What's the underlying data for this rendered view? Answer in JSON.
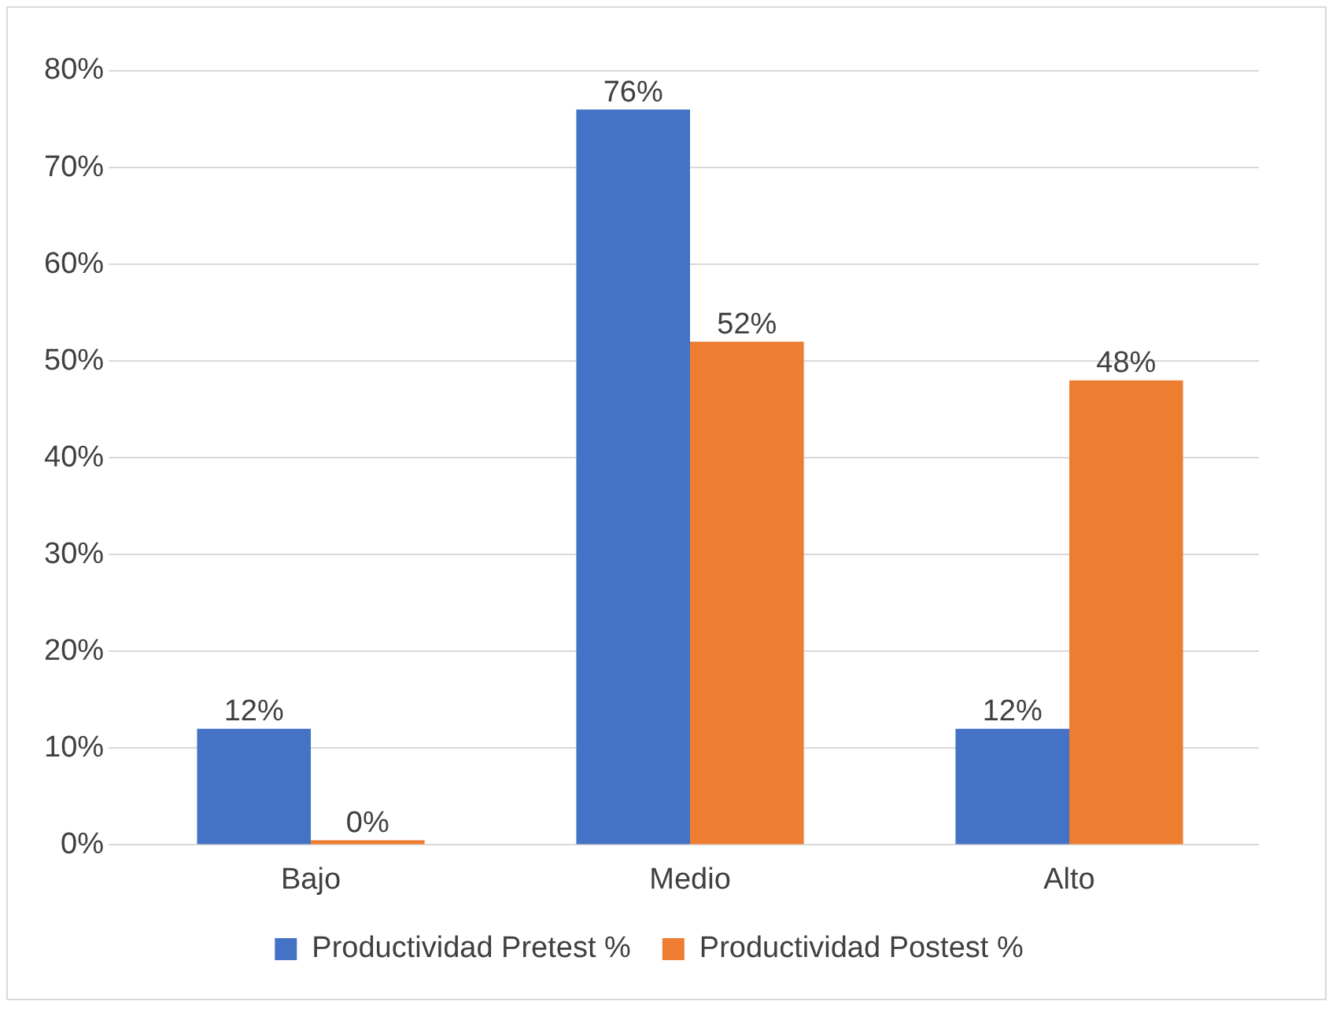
{
  "chart_data": {
    "type": "bar",
    "categories": [
      "Bajo",
      "Medio",
      "Alto"
    ],
    "series": [
      {
        "name": "Productividad Pretest %",
        "color": "#4472c4",
        "values": [
          12,
          76,
          12
        ],
        "value_labels": [
          "12%",
          "76%",
          "12%"
        ]
      },
      {
        "name": "Productividad Postest %",
        "color": "#ed7d31",
        "values": [
          0,
          52,
          48
        ],
        "value_labels": [
          "0%",
          "52%",
          "48%"
        ]
      }
    ],
    "ylim": [
      0,
      80
    ],
    "yticks": [
      {
        "value": 0,
        "label": "0%"
      },
      {
        "value": 10,
        "label": "10%"
      },
      {
        "value": 20,
        "label": "20%"
      },
      {
        "value": 30,
        "label": "30%"
      },
      {
        "value": 40,
        "label": "40%"
      },
      {
        "value": 50,
        "label": "50%"
      },
      {
        "value": 60,
        "label": "60%"
      },
      {
        "value": 70,
        "label": "70%"
      },
      {
        "value": 80,
        "label": "80%"
      }
    ],
    "grid": "y",
    "legend": "bottom"
  }
}
